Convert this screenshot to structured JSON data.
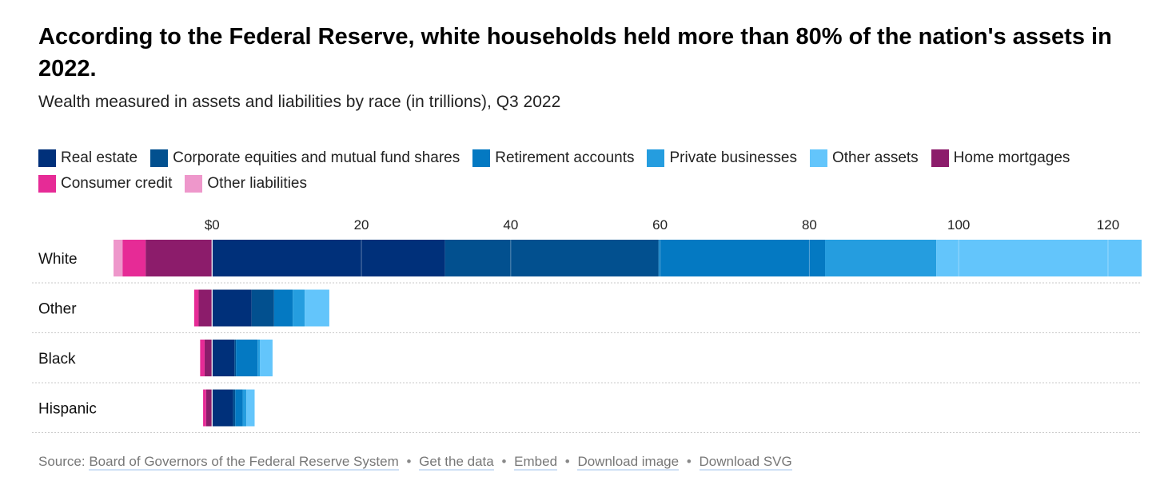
{
  "header": {
    "title": "According to the Federal Reserve, white households held more than 80% of the nation's assets in 2022.",
    "subtitle": "Wealth measured in assets and liabilities by race (in trillions), Q3 2022"
  },
  "legend": [
    {
      "label": "Real estate",
      "color": "#00307a"
    },
    {
      "label": "Corporate equities and mutual fund shares",
      "color": "#02508f"
    },
    {
      "label": "Retirement accounts",
      "color": "#0479c2"
    },
    {
      "label": "Private businesses",
      "color": "#259ddf"
    },
    {
      "label": "Other assets",
      "color": "#63c5fb"
    },
    {
      "label": "Home mortgages",
      "color": "#8c1c6b"
    },
    {
      "label": "Consumer credit",
      "color": "#e62b96"
    },
    {
      "label": "Other liabilities",
      "color": "#ee97cb"
    }
  ],
  "chart_data": {
    "type": "bar",
    "orientation": "horizontal",
    "stacked": true,
    "categories": [
      "White",
      "Other",
      "Black",
      "Hispanic"
    ],
    "x_ticks": [
      "$0",
      "20",
      "40",
      "60",
      "80",
      "100",
      "120"
    ],
    "x_tick_values": [
      0,
      20,
      40,
      60,
      80,
      100,
      120
    ],
    "xlim": [
      -13.2,
      124.5
    ],
    "series": [
      {
        "name": "Real estate",
        "color": "#00307a",
        "values": [
          31.2,
          5.3,
          3.0,
          2.8
        ]
      },
      {
        "name": "Corporate equities and mutual fund shares",
        "color": "#02508f",
        "values": [
          28.6,
          3.0,
          0.2,
          0.3
        ]
      },
      {
        "name": "Retirement accounts",
        "color": "#0479c2",
        "values": [
          22.3,
          2.5,
          2.9,
          1.0
        ]
      },
      {
        "name": "Private businesses",
        "color": "#259ddf",
        "values": [
          14.9,
          1.6,
          0.3,
          0.5
        ]
      },
      {
        "name": "Other assets",
        "color": "#63c5fb",
        "values": [
          27.5,
          3.3,
          1.7,
          1.1
        ]
      },
      {
        "name": "Home mortgages",
        "color": "#8c1c6b",
        "values": [
          -8.9,
          -1.8,
          -1.0,
          -0.8
        ]
      },
      {
        "name": "Consumer credit",
        "color": "#e62b96",
        "values": [
          -3.1,
          -0.6,
          -0.6,
          -0.4
        ]
      },
      {
        "name": "Other liabilities",
        "color": "#ee97cb",
        "values": [
          -1.2,
          0,
          0,
          0
        ]
      }
    ],
    "grid": true,
    "legend_position": "top"
  },
  "footer": {
    "source_prefix": "Source:",
    "source_link": "Board of Governors of the Federal Reserve System",
    "separator": "•",
    "get_data": "Get the data",
    "embed": "Embed",
    "download_image": "Download image",
    "download_svg": "Download SVG"
  }
}
